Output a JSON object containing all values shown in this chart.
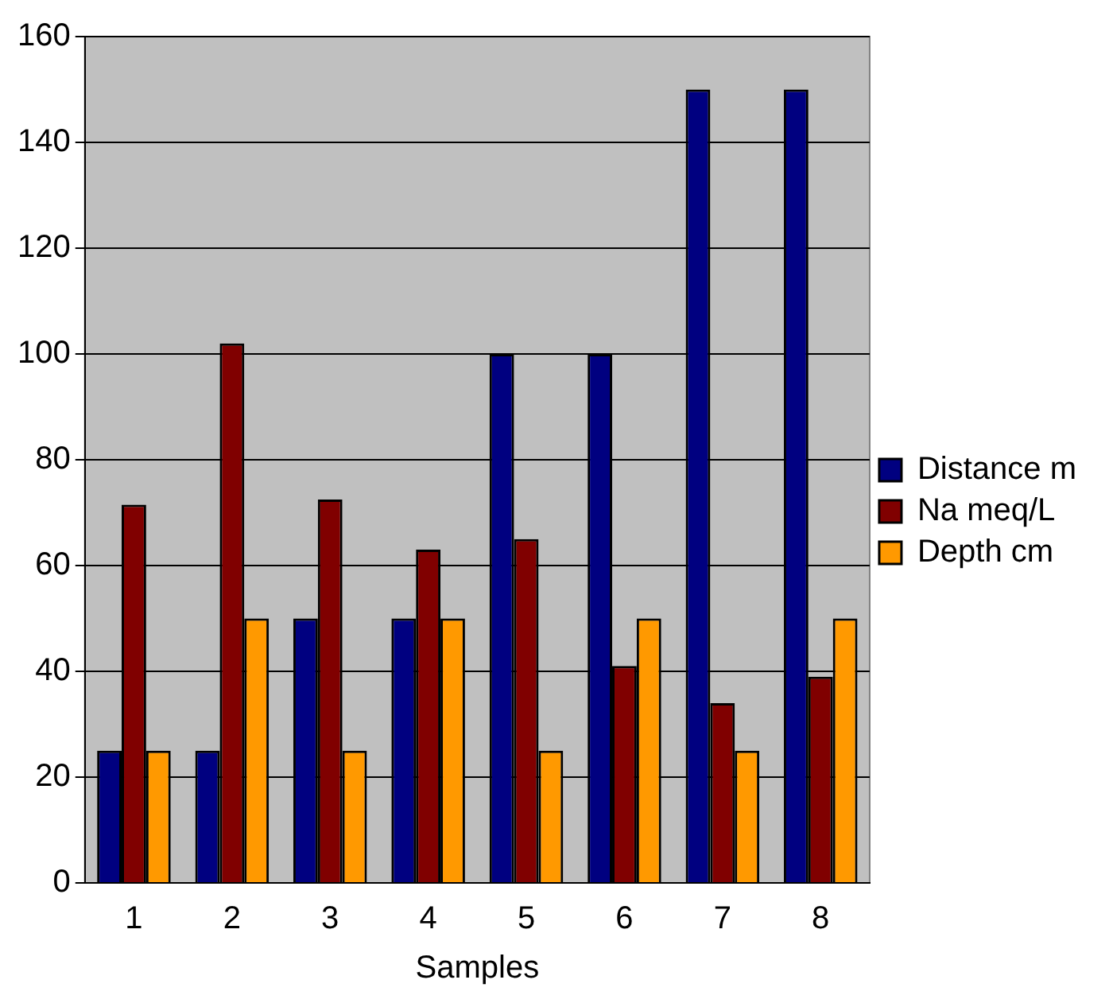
{
  "chart_data": {
    "type": "bar",
    "xlabel": "Samples",
    "categories": [
      "1",
      "2",
      "3",
      "4",
      "5",
      "6",
      "7",
      "8"
    ],
    "series": [
      {
        "name": "Distance m",
        "color": "#000080",
        "values": [
          25,
          25,
          50,
          50,
          100,
          100,
          150,
          150
        ]
      },
      {
        "name": "Na meq/L",
        "color": "#800000",
        "values": [
          71.5,
          102,
          72.5,
          63,
          65,
          41,
          34,
          39
        ]
      },
      {
        "name": "Depth cm",
        "color": "#ff9900",
        "values": [
          25,
          50,
          25,
          50,
          25,
          50,
          25,
          50
        ]
      }
    ],
    "ylim": [
      0,
      160
    ],
    "yticks": [
      0,
      20,
      40,
      60,
      80,
      100,
      120,
      140,
      160
    ],
    "grid": "y",
    "legend": "right"
  }
}
